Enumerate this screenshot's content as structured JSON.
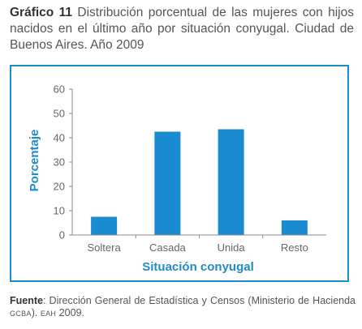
{
  "header": {
    "label": "Gráfico 11",
    "text": "Distribución porcentual de las mujeres con hijos nacidos en el último año por situación conyugal. Ciudad de Buenos Aires. Año 2009"
  },
  "chart_data": {
    "type": "bar",
    "categories": [
      "Soltera",
      "Casada",
      "Unida",
      "Resto"
    ],
    "values": [
      7.5,
      42.5,
      43.5,
      6
    ],
    "ylabel": "Porcentaje",
    "xlabel": "Situación conyugal",
    "ylim": [
      0,
      60
    ],
    "yticks": [
      0,
      10,
      20,
      30,
      40,
      50,
      60
    ],
    "grid": false,
    "colors": {
      "bar": "#1a8bd1",
      "axis_title": "#1f8bc9",
      "axis": "#888888",
      "frame": "#1f8bc9"
    }
  },
  "source": {
    "label": "Fuente",
    "text_a": ": Dirección General de Estadística y Censos (Ministerio de Hacienda ",
    "gcba": "GCBA",
    "text_b": "). ",
    "eah": "EAH",
    "text_c": " 2009."
  }
}
